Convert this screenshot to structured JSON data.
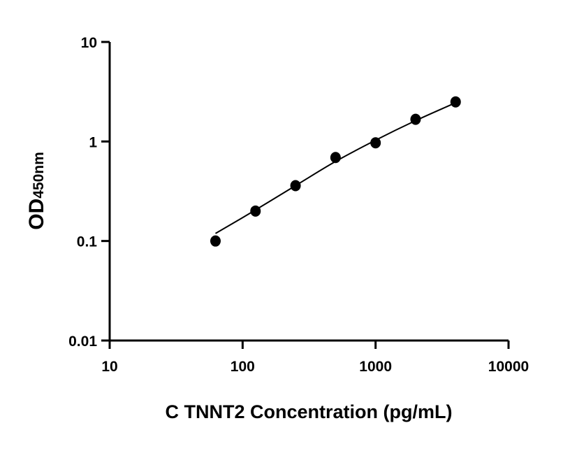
{
  "chart_data": {
    "type": "scatter",
    "title": "",
    "xlabel": "C TNNT2 Concentration (pg/mL)",
    "ylabel": {
      "main": "OD",
      "subscript": "450nm"
    },
    "xscale": "log",
    "yscale": "log",
    "xlim": [
      10,
      10000
    ],
    "ylim": [
      0.01,
      10
    ],
    "xticks": [
      "10",
      "100",
      "1000",
      "10000"
    ],
    "yticks": [
      "0.01",
      "0.1",
      "1",
      "10"
    ],
    "grid": false,
    "legend": "none",
    "color": "#000000",
    "series": [
      {
        "x": [
          62.5,
          125,
          250,
          500,
          1000,
          2000,
          4000
        ],
        "y": [
          0.1,
          0.2,
          0.36,
          0.69,
          0.97,
          1.67,
          2.5
        ]
      }
    ],
    "fit_curve": {
      "x": [
        62.5,
        125,
        250,
        500,
        1000,
        2000,
        4000
      ],
      "y": [
        0.119,
        0.205,
        0.36,
        0.63,
        1.03,
        1.62,
        2.45
      ]
    }
  }
}
